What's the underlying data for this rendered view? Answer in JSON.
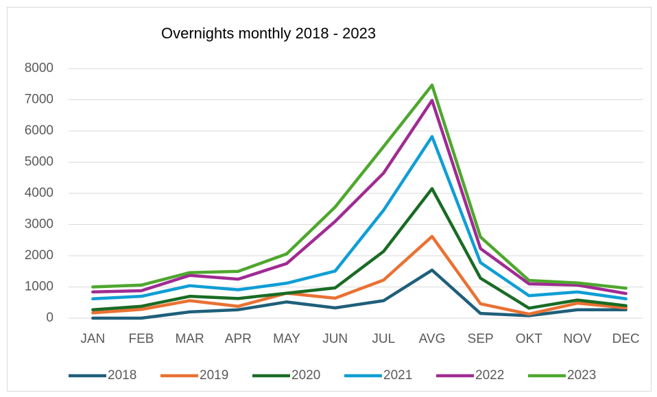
{
  "chart_data": {
    "type": "line",
    "title": "Overnights monthly 2018 - 2023",
    "categories": [
      "JAN",
      "FEB",
      "MAR",
      "APR",
      "MAY",
      "JUN",
      "JUL",
      "AVG",
      "SEP",
      "OKT",
      "NOV",
      "DEC"
    ],
    "series": [
      {
        "name": "2018",
        "color": "#1f5f7a",
        "values": [
          0,
          0,
          200,
          270,
          520,
          330,
          560,
          1540,
          150,
          80,
          270,
          270
        ]
      },
      {
        "name": "2019",
        "color": "#e97132",
        "values": [
          170,
          280,
          560,
          380,
          800,
          640,
          1220,
          2620,
          460,
          130,
          480,
          330
        ]
      },
      {
        "name": "2020",
        "color": "#196b24",
        "values": [
          270,
          380,
          700,
          630,
          800,
          970,
          2140,
          4150,
          1280,
          320,
          580,
          400
        ]
      },
      {
        "name": "2021",
        "color": "#0f9ed5",
        "values": [
          620,
          700,
          1040,
          910,
          1120,
          1510,
          3460,
          5820,
          1780,
          720,
          840,
          620
        ]
      },
      {
        "name": "2022",
        "color": "#a02b93",
        "values": [
          840,
          880,
          1370,
          1250,
          1750,
          3100,
          4650,
          6980,
          2230,
          1100,
          1060,
          790
        ]
      },
      {
        "name": "2023",
        "color": "#4ea72e",
        "values": [
          1000,
          1060,
          1460,
          1500,
          2060,
          3560,
          5500,
          7470,
          2600,
          1210,
          1130,
          960
        ]
      }
    ],
    "ylim": [
      0,
      8000
    ],
    "yticks": [
      0,
      1000,
      2000,
      3000,
      4000,
      5000,
      6000,
      7000,
      8000
    ],
    "grid": true,
    "legend": "bottom"
  }
}
